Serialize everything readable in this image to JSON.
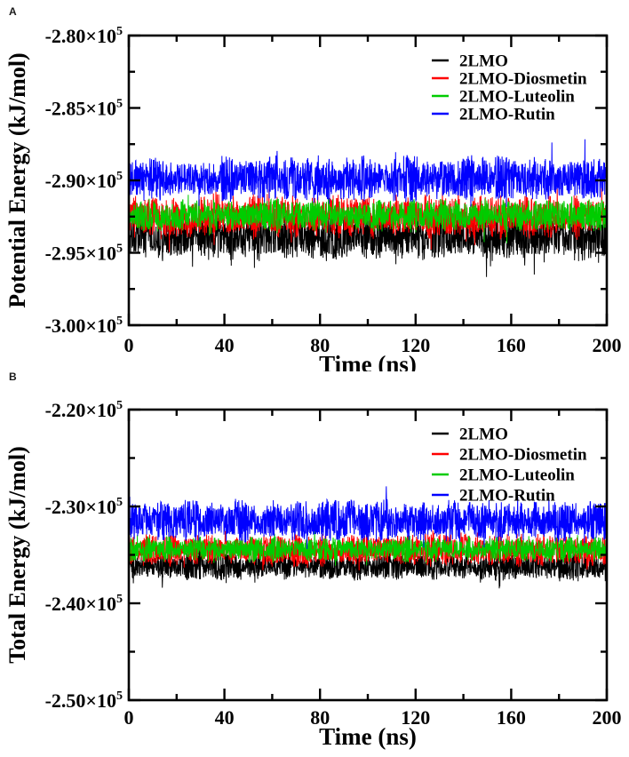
{
  "figure": {
    "background": "#ffffff",
    "frame_color": "#000000"
  },
  "chart_data": [
    {
      "panel_label": "A",
      "type": "line",
      "title": "",
      "xlabel": "Time (ns)",
      "ylabel": "Potential Energy (kJ/mol)",
      "xlim": [
        0,
        200
      ],
      "ylim": [
        -300000,
        -280000
      ],
      "grid": false,
      "legend_position": "top-right-inside",
      "x_major_ticks": [
        {
          "v": 0,
          "label": "0"
        },
        {
          "v": 40,
          "label": "40"
        },
        {
          "v": 80,
          "label": "80"
        },
        {
          "v": 120,
          "label": "120"
        },
        {
          "v": 160,
          "label": "160"
        },
        {
          "v": 200,
          "label": "200"
        }
      ],
      "x_minor_ticks": [
        20,
        60,
        100,
        140,
        180
      ],
      "y_major_ticks": [
        {
          "v": -280000,
          "label": "-2.80×10^5"
        },
        {
          "v": -285000,
          "label": "-2.85×10^5"
        },
        {
          "v": -290000,
          "label": "-2.90×10^5"
        },
        {
          "v": -295000,
          "label": "-2.95×10^5"
        },
        {
          "v": -300000,
          "label": "-3.00×10^5"
        }
      ],
      "y_minor_ticks": [
        -282500,
        -287500,
        -292500,
        -297500
      ],
      "series": [
        {
          "name": "2LMO",
          "color": "#000000",
          "behavior": "stable flat noise band over 0-200 ns",
          "mean": -293900,
          "noise_amp": 1350,
          "spike_amp": 800,
          "approx_range": [
            -295600,
            -292500
          ]
        },
        {
          "name": "2LMO-Diosmetin",
          "color": "#ff0000",
          "behavior": "stable flat noise band over 0-200 ns",
          "mean": -292500,
          "noise_amp": 1250,
          "spike_amp": 600,
          "approx_range": [
            -293900,
            -291200
          ]
        },
        {
          "name": "2LMO-Luteolin",
          "color": "#00cc00",
          "behavior": "stable flat noise band over 0-200 ns",
          "mean": -292400,
          "noise_amp": 950,
          "spike_amp": 500,
          "approx_range": [
            -293400,
            -291400
          ]
        },
        {
          "name": "2LMO-Rutin",
          "color": "#0000ff",
          "behavior": "stable flat noise band over 0-200 ns",
          "mean": -289900,
          "noise_amp": 1300,
          "spike_amp": 900,
          "approx_range": [
            -291300,
            -288200
          ]
        }
      ]
    },
    {
      "panel_label": "B",
      "type": "line",
      "title": "",
      "xlabel": "Time (ns)",
      "ylabel": "Total Energy (kJ/mol)",
      "xlim": [
        0,
        200
      ],
      "ylim": [
        -250000,
        -220000
      ],
      "grid": false,
      "legend_position": "top-right-inside",
      "x_major_ticks": [
        {
          "v": 0,
          "label": "0"
        },
        {
          "v": 40,
          "label": "40"
        },
        {
          "v": 80,
          "label": "80"
        },
        {
          "v": 120,
          "label": "120"
        },
        {
          "v": 160,
          "label": "160"
        },
        {
          "v": 200,
          "label": "200"
        }
      ],
      "x_minor_ticks": [
        20,
        60,
        100,
        140,
        180
      ],
      "y_major_ticks": [
        {
          "v": -220000,
          "label": "-2.20×10^5"
        },
        {
          "v": -230000,
          "label": "-2.30×10^5"
        },
        {
          "v": -240000,
          "label": "-2.40×10^5"
        },
        {
          "v": -250000,
          "label": "-2.50×10^5"
        }
      ],
      "y_minor_ticks": [
        -225000,
        -235000,
        -245000
      ],
      "series": [
        {
          "name": "2LMO",
          "color": "#000000",
          "behavior": "stable flat noise band over 0-200 ns",
          "mean": -236200,
          "noise_amp": 1200,
          "spike_amp": 800,
          "approx_range": [
            -237800,
            -235000
          ]
        },
        {
          "name": "2LMO-Diosmetin",
          "color": "#ff0000",
          "behavior": "stable flat noise band over 0-200 ns",
          "mean": -234500,
          "noise_amp": 1400,
          "spike_amp": 600,
          "approx_range": [
            -235900,
            -233100
          ]
        },
        {
          "name": "2LMO-Luteolin",
          "color": "#00cc00",
          "behavior": "stable flat noise band over 0-200 ns",
          "mean": -234400,
          "noise_amp": 1100,
          "spike_amp": 500,
          "approx_range": [
            -235500,
            -233300
          ]
        },
        {
          "name": "2LMO-Rutin",
          "color": "#0000ff",
          "behavior": "stable flat noise band over 0-200 ns",
          "mean": -231500,
          "noise_amp": 1800,
          "spike_amp": 900,
          "approx_range": [
            -233400,
            -229600
          ]
        }
      ]
    }
  ]
}
